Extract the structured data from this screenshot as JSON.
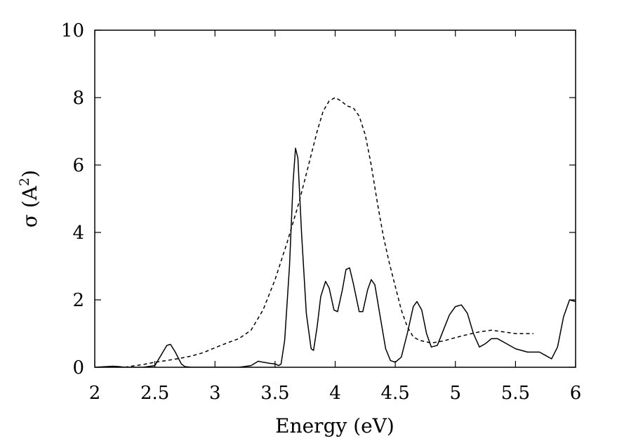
{
  "chart_data": {
    "type": "line",
    "title": "",
    "xlabel": "Energy (eV)",
    "ylabel": {
      "base": "σ (A",
      "sup": "2",
      "close": ")"
    },
    "xlim": [
      2,
      6
    ],
    "ylim": [
      0,
      10
    ],
    "xticks": [
      2,
      2.5,
      3,
      3.5,
      4,
      4.5,
      5,
      5.5,
      6
    ],
    "xtick_labels": [
      "2",
      "2.5",
      "3",
      "3.5",
      "4",
      "4.5",
      "5",
      "5.5",
      "6"
    ],
    "yticks": [
      0,
      2,
      4,
      6,
      8,
      10
    ],
    "ytick_labels": [
      "0",
      "2",
      "4",
      "6",
      "8",
      "10"
    ],
    "grid": false,
    "legend": "none",
    "series": [
      {
        "style": "solid",
        "color": "#000000",
        "points": [
          [
            2.0,
            0.0
          ],
          [
            2.05,
            0.01
          ],
          [
            2.1,
            0.02
          ],
          [
            2.15,
            0.03
          ],
          [
            2.2,
            0.02
          ],
          [
            2.25,
            0.0
          ],
          [
            2.4,
            0.0
          ],
          [
            2.5,
            0.05
          ],
          [
            2.55,
            0.35
          ],
          [
            2.6,
            0.65
          ],
          [
            2.63,
            0.68
          ],
          [
            2.67,
            0.45
          ],
          [
            2.72,
            0.1
          ],
          [
            2.75,
            0.02
          ],
          [
            2.8,
            0.0
          ],
          [
            3.2,
            0.0
          ],
          [
            3.3,
            0.05
          ],
          [
            3.36,
            0.18
          ],
          [
            3.4,
            0.15
          ],
          [
            3.45,
            0.12
          ],
          [
            3.5,
            0.1
          ],
          [
            3.53,
            0.05
          ],
          [
            3.55,
            0.1
          ],
          [
            3.58,
            0.8
          ],
          [
            3.62,
            3.0
          ],
          [
            3.65,
            5.5
          ],
          [
            3.67,
            6.5
          ],
          [
            3.69,
            6.2
          ],
          [
            3.72,
            4.0
          ],
          [
            3.76,
            1.6
          ],
          [
            3.8,
            0.55
          ],
          [
            3.82,
            0.5
          ],
          [
            3.85,
            1.2
          ],
          [
            3.88,
            2.1
          ],
          [
            3.92,
            2.55
          ],
          [
            3.95,
            2.35
          ],
          [
            3.99,
            1.7
          ],
          [
            4.02,
            1.65
          ],
          [
            4.06,
            2.3
          ],
          [
            4.09,
            2.9
          ],
          [
            4.12,
            2.95
          ],
          [
            4.15,
            2.5
          ],
          [
            4.2,
            1.65
          ],
          [
            4.23,
            1.65
          ],
          [
            4.27,
            2.3
          ],
          [
            4.3,
            2.6
          ],
          [
            4.33,
            2.45
          ],
          [
            4.37,
            1.6
          ],
          [
            4.42,
            0.55
          ],
          [
            4.46,
            0.2
          ],
          [
            4.5,
            0.15
          ],
          [
            4.55,
            0.3
          ],
          [
            4.6,
            1.0
          ],
          [
            4.65,
            1.8
          ],
          [
            4.68,
            1.95
          ],
          [
            4.72,
            1.7
          ],
          [
            4.76,
            1.0
          ],
          [
            4.8,
            0.6
          ],
          [
            4.85,
            0.65
          ],
          [
            4.9,
            1.1
          ],
          [
            4.95,
            1.55
          ],
          [
            5.0,
            1.8
          ],
          [
            5.05,
            1.85
          ],
          [
            5.1,
            1.6
          ],
          [
            5.15,
            1.0
          ],
          [
            5.2,
            0.6
          ],
          [
            5.25,
            0.7
          ],
          [
            5.3,
            0.85
          ],
          [
            5.35,
            0.85
          ],
          [
            5.4,
            0.75
          ],
          [
            5.5,
            0.55
          ],
          [
            5.6,
            0.45
          ],
          [
            5.7,
            0.45
          ],
          [
            5.75,
            0.35
          ],
          [
            5.8,
            0.25
          ],
          [
            5.85,
            0.6
          ],
          [
            5.9,
            1.5
          ],
          [
            5.95,
            2.0
          ],
          [
            6.0,
            1.95
          ]
        ]
      },
      {
        "style": "dashed",
        "color": "#000000",
        "points": [
          [
            2.25,
            0.0
          ],
          [
            2.3,
            0.03
          ],
          [
            2.4,
            0.08
          ],
          [
            2.5,
            0.15
          ],
          [
            2.6,
            0.2
          ],
          [
            2.7,
            0.26
          ],
          [
            2.8,
            0.33
          ],
          [
            2.9,
            0.43
          ],
          [
            3.0,
            0.58
          ],
          [
            3.1,
            0.72
          ],
          [
            3.2,
            0.85
          ],
          [
            3.3,
            1.1
          ],
          [
            3.4,
            1.7
          ],
          [
            3.5,
            2.6
          ],
          [
            3.6,
            3.7
          ],
          [
            3.7,
            4.9
          ],
          [
            3.8,
            6.3
          ],
          [
            3.85,
            7.0
          ],
          [
            3.9,
            7.6
          ],
          [
            3.95,
            7.9
          ],
          [
            4.0,
            8.0
          ],
          [
            4.05,
            7.9
          ],
          [
            4.1,
            7.75
          ],
          [
            4.15,
            7.7
          ],
          [
            4.2,
            7.45
          ],
          [
            4.25,
            6.9
          ],
          [
            4.3,
            6.0
          ],
          [
            4.35,
            4.9
          ],
          [
            4.4,
            3.9
          ],
          [
            4.45,
            3.1
          ],
          [
            4.5,
            2.4
          ],
          [
            4.55,
            1.7
          ],
          [
            4.6,
            1.2
          ],
          [
            4.65,
            0.9
          ],
          [
            4.7,
            0.8
          ],
          [
            4.8,
            0.72
          ],
          [
            4.9,
            0.78
          ],
          [
            5.0,
            0.88
          ],
          [
            5.1,
            0.97
          ],
          [
            5.2,
            1.05
          ],
          [
            5.3,
            1.1
          ],
          [
            5.4,
            1.05
          ],
          [
            5.5,
            1.0
          ],
          [
            5.65,
            1.0
          ]
        ]
      }
    ]
  }
}
